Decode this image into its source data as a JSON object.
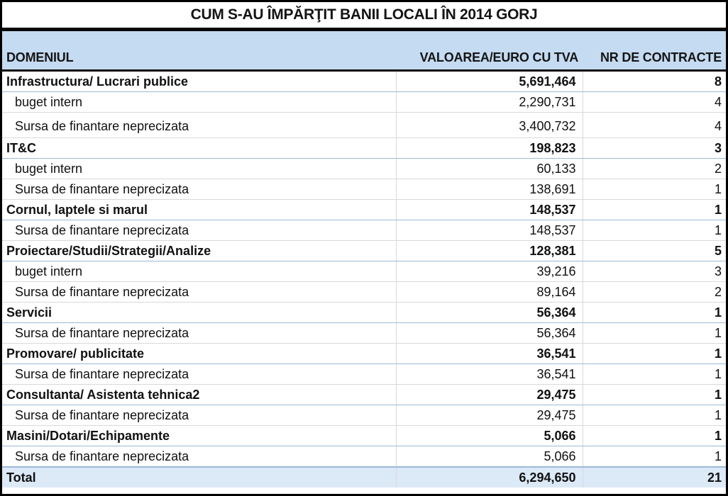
{
  "title": "CUM S-AU ÎMPĂRŢIT BANII LOCALI ÎN 2014 GORJ",
  "table": {
    "columns": [
      "DOMENIUL",
      "VALOAREA/EURO CU TVA",
      "NR DE CONTRACTE"
    ],
    "rows": [
      {
        "domain": "Infrastructura/ Lucrari publice",
        "value": "5,691,464",
        "contracts": "8",
        "type": "category"
      },
      {
        "domain": "buget intern",
        "value": "2,290,731",
        "contracts": "4",
        "type": "sub"
      },
      {
        "domain": "Sursa de finantare neprecizata",
        "value": "3,400,732",
        "contracts": "4",
        "type": "sub",
        "tall": true
      },
      {
        "domain": "IT&C",
        "value": "198,823",
        "contracts": "3",
        "type": "category"
      },
      {
        "domain": "buget intern",
        "value": "60,133",
        "contracts": "2",
        "type": "sub"
      },
      {
        "domain": "Sursa de finantare neprecizata",
        "value": "138,691",
        "contracts": "1",
        "type": "sub"
      },
      {
        "domain": "Cornul, laptele si marul",
        "value": "148,537",
        "contracts": "1",
        "type": "category"
      },
      {
        "domain": "Sursa de finantare neprecizata",
        "value": "148,537",
        "contracts": "1",
        "type": "sub"
      },
      {
        "domain": "Proiectare/Studii/Strategii/Analize",
        "value": "128,381",
        "contracts": "5",
        "type": "category"
      },
      {
        "domain": "buget intern",
        "value": "39,216",
        "contracts": "3",
        "type": "sub"
      },
      {
        "domain": "Sursa de finantare neprecizata",
        "value": "89,164",
        "contracts": "2",
        "type": "sub"
      },
      {
        "domain": "Servicii",
        "value": "56,364",
        "contracts": "1",
        "type": "category"
      },
      {
        "domain": "Sursa de finantare neprecizata",
        "value": "56,364",
        "contracts": "1",
        "type": "sub"
      },
      {
        "domain": "Promovare/ publicitate",
        "value": "36,541",
        "contracts": "1",
        "type": "category"
      },
      {
        "domain": "Sursa de finantare neprecizata",
        "value": "36,541",
        "contracts": "1",
        "type": "sub"
      },
      {
        "domain": "Consultanta/ Asistenta tehnica2",
        "value": "29,475",
        "contracts": "1",
        "type": "category"
      },
      {
        "domain": "Sursa de finantare neprecizata",
        "value": "29,475",
        "contracts": "1",
        "type": "sub"
      },
      {
        "domain": "Masini/Dotari/Echipamente",
        "value": "5,066",
        "contracts": "1",
        "type": "category"
      },
      {
        "domain": "Sursa de finantare neprecizata",
        "value": "5,066",
        "contracts": "1",
        "type": "sub"
      }
    ],
    "total": {
      "label": "Total",
      "value": "6,294,650",
      "contracts": "21"
    }
  },
  "colors": {
    "header_bg": "#c5dbf2",
    "total_bg": "#dce9f7",
    "category_row_border": "#9bb9da",
    "sub_row_border": "#d9d9d9",
    "frame_border": "#000000",
    "text": "#111111"
  }
}
